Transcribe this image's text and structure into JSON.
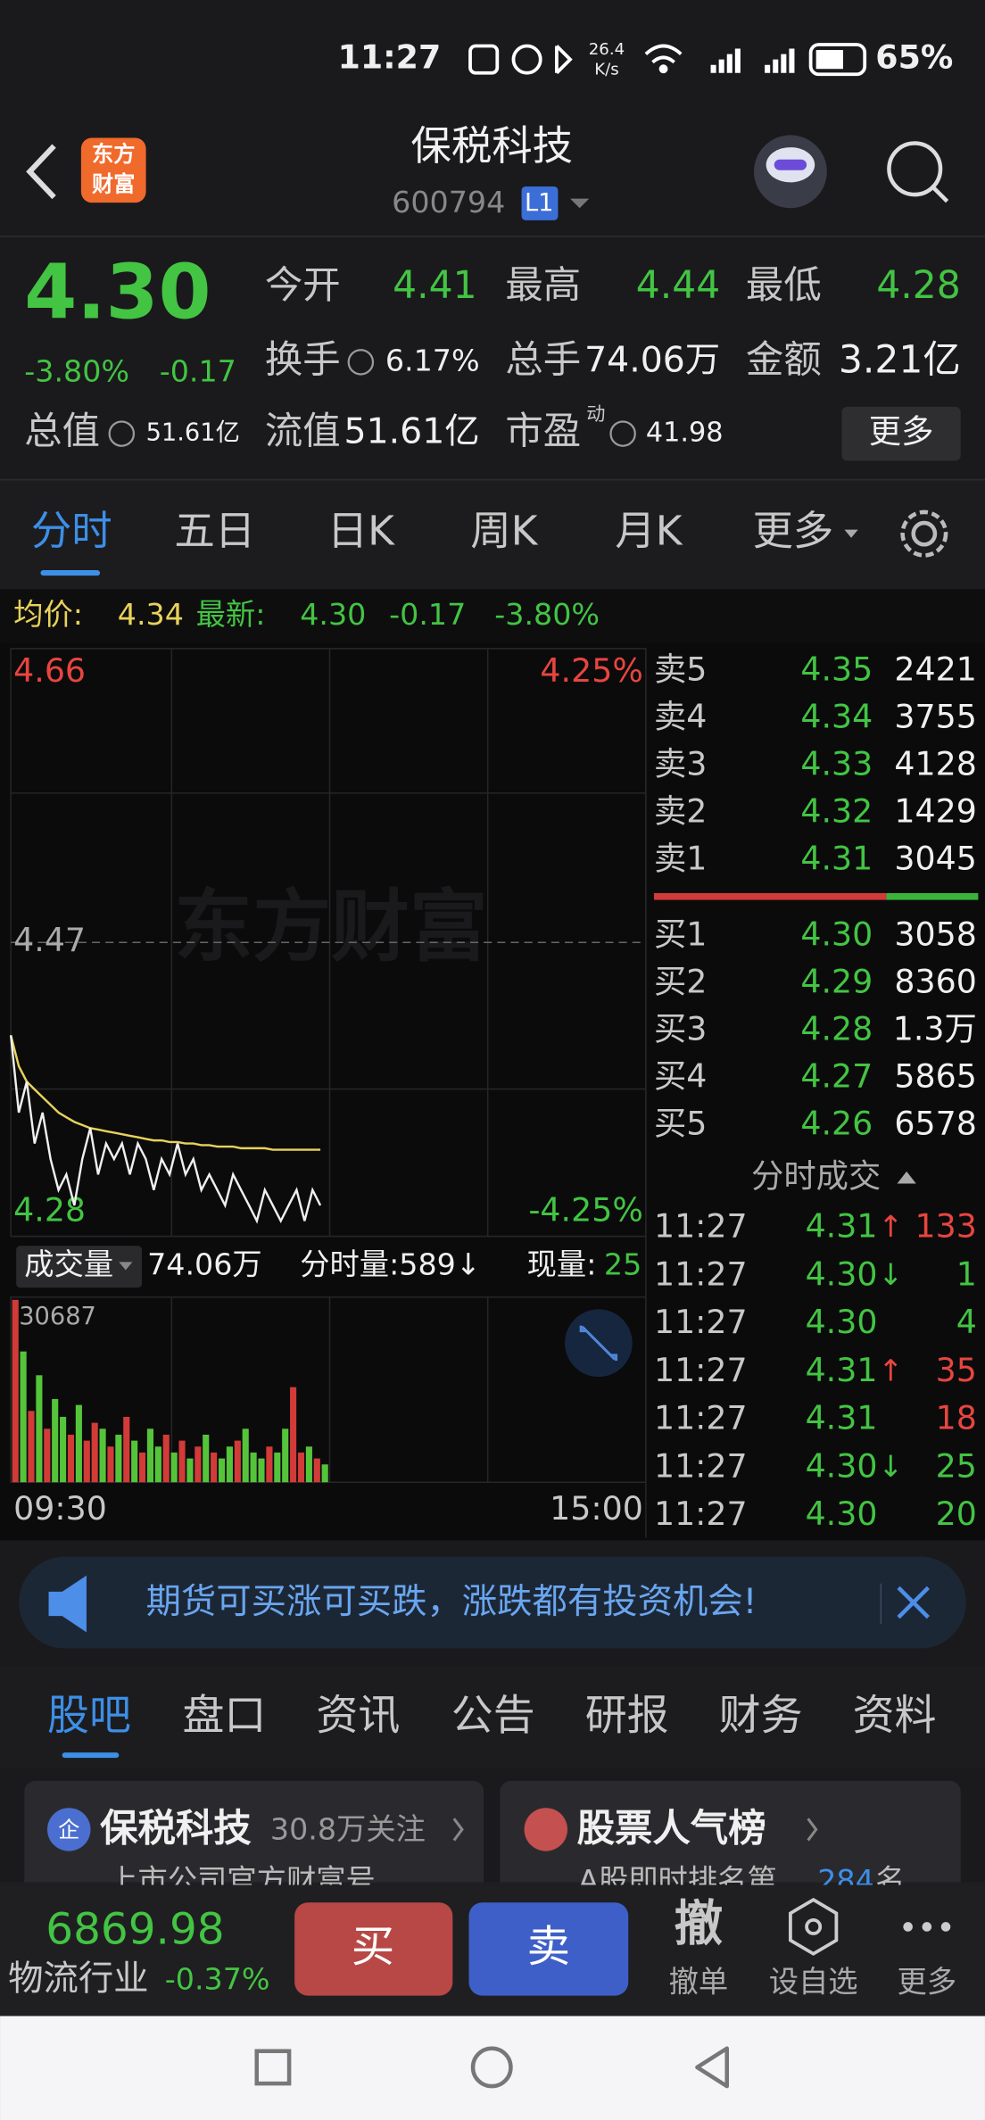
{
  "status": {
    "time": "11:27",
    "speed": "26.4",
    "speed_unit": "K/s",
    "battery": "65%"
  },
  "header": {
    "logo": [
      "东方",
      "财富"
    ],
    "title": "保税科技",
    "code": "600794",
    "level": "L1"
  },
  "quote": {
    "price": "4.30",
    "change_pct": "-3.80%",
    "change": "-0.17",
    "more": "更多",
    "fields": [
      {
        "label": "今开",
        "value": "4.41"
      },
      {
        "label": "最高",
        "value": "4.44"
      },
      {
        "label": "最低",
        "value": "4.28"
      },
      {
        "label": "换手",
        "value": "6.17%"
      },
      {
        "label": "总手",
        "value": "74.06万"
      },
      {
        "label": "金额",
        "value": "3.21亿"
      },
      {
        "label": "总值",
        "value": "51.61亿"
      },
      {
        "label": "流值",
        "value": "51.61亿"
      },
      {
        "label": "市盈",
        "sup": "动",
        "value": "41.98"
      }
    ]
  },
  "tabs": [
    "分时",
    "五日",
    "日K",
    "周K",
    "月K",
    "更多"
  ],
  "info": {
    "avg_label": "均价:",
    "avg": "4.34",
    "latest_label": "最新:",
    "latest": "4.30",
    "change": "-0.17",
    "pct": "-3.80%"
  },
  "intraday": {
    "watermark": "东方财富",
    "yticks": [
      4.66,
      4.47,
      4.28
    ],
    "ylim": [
      4.28,
      4.66
    ],
    "pct_labels": [
      "4.25%",
      "-4.25%"
    ],
    "xlim": [
      0,
      240
    ],
    "time_labels": [
      "09:30",
      "15:00"
    ],
    "x": [
      0,
      3,
      6,
      9,
      12,
      15,
      18,
      21,
      24,
      27,
      30,
      33,
      36,
      39,
      42,
      45,
      48,
      51,
      54,
      57,
      60,
      63,
      66,
      69,
      72,
      75,
      78,
      81,
      84,
      87,
      90,
      93,
      96,
      99,
      102,
      105,
      108,
      111,
      114,
      117
    ],
    "price": [
      4.41,
      4.36,
      4.38,
      4.34,
      4.36,
      4.33,
      4.31,
      4.32,
      4.3,
      4.33,
      4.35,
      4.32,
      4.34,
      4.33,
      4.34,
      4.32,
      4.34,
      4.33,
      4.31,
      4.33,
      4.32,
      4.34,
      4.32,
      4.33,
      4.31,
      4.32,
      4.31,
      4.3,
      4.32,
      4.31,
      4.3,
      4.29,
      4.31,
      4.3,
      4.29,
      4.3,
      4.31,
      4.29,
      4.31,
      4.3
    ],
    "avg": [
      4.41,
      4.39,
      4.38,
      4.375,
      4.37,
      4.365,
      4.36,
      4.357,
      4.354,
      4.352,
      4.35,
      4.349,
      4.348,
      4.347,
      4.346,
      4.345,
      4.344,
      4.343,
      4.342,
      4.342,
      4.341,
      4.341,
      4.34,
      4.34,
      4.339,
      4.339,
      4.338,
      4.338,
      4.338,
      4.337,
      4.337,
      4.337,
      4.337,
      4.336,
      4.336,
      4.336,
      4.336,
      4.336,
      4.336,
      4.336
    ],
    "volume_label": "成交量",
    "total_volume": "74.06万",
    "minute_volume": "分时量:589↓",
    "current_label": "现量:",
    "current": "25",
    "vmax": 30687,
    "volume": [
      30687,
      22000,
      12000,
      18000,
      9000,
      14000,
      11000,
      8000,
      13000,
      7000,
      10000,
      9000,
      6000,
      8000,
      11000,
      7000,
      5000,
      9000,
      6000,
      8000,
      5000,
      7000,
      4000,
      6000,
      8000,
      5000,
      4000,
      6000,
      7000,
      9000,
      5000,
      4000,
      6000,
      5000,
      9000,
      16000,
      5000,
      6000,
      4000,
      3000
    ]
  },
  "book": {
    "sell": [
      {
        "label": "卖5",
        "price": "4.35",
        "vol": "2421"
      },
      {
        "label": "卖4",
        "price": "4.34",
        "vol": "3755"
      },
      {
        "label": "卖3",
        "price": "4.33",
        "vol": "4128"
      },
      {
        "label": "卖2",
        "price": "4.32",
        "vol": "1429"
      },
      {
        "label": "卖1",
        "price": "4.31",
        "vol": "3045"
      }
    ],
    "buy": [
      {
        "label": "买1",
        "price": "4.30",
        "vol": "3058"
      },
      {
        "label": "买2",
        "price": "4.29",
        "vol": "8360"
      },
      {
        "label": "买3",
        "price": "4.28",
        "vol": "1.3万"
      },
      {
        "label": "买4",
        "price": "4.27",
        "vol": "5865"
      },
      {
        "label": "买5",
        "price": "4.26",
        "vol": "6578"
      }
    ]
  },
  "trades": {
    "title": "分时成交",
    "rows": [
      {
        "time": "11:27",
        "price": "4.31",
        "dir": "↑",
        "vol": "133",
        "color": "#e8453f"
      },
      {
        "time": "11:27",
        "price": "4.30",
        "dir": "↓",
        "vol": "1",
        "color": "#43c443"
      },
      {
        "time": "11:27",
        "price": "4.30",
        "vol": "4",
        "color": "#43c443"
      },
      {
        "time": "11:27",
        "price": "4.31",
        "dir": "↑",
        "vol": "35",
        "color": "#e8453f"
      },
      {
        "time": "11:27",
        "price": "4.31",
        "vol": "18",
        "color": "#e8453f"
      },
      {
        "time": "11:27",
        "price": "4.30",
        "dir": "↓",
        "vol": "25",
        "color": "#43c443"
      },
      {
        "time": "11:27",
        "price": "4.30",
        "vol": "20",
        "color": "#43c443"
      }
    ]
  },
  "banner": "期货可买涨可买跌，涨跌都有投资机会!",
  "bottom_tabs": [
    "股吧",
    "盘口",
    "资讯",
    "公告",
    "研报",
    "财务",
    "资料"
  ],
  "cards": [
    {
      "badge": "企",
      "title": "保税科技",
      "sub": "30.8万关注",
      "desc": "上市公司官方财富号"
    },
    {
      "title": "股票人气榜",
      "desc": "A股即时排名第",
      "rank": "284",
      "desc_end": "名"
    }
  ],
  "footer": {
    "index": "6869.98",
    "sector": "物流行业",
    "sector_change": "-0.37%",
    "buy": "买",
    "sell": "卖",
    "cancel_icon": "撤",
    "cancel": "撤单",
    "watch": "设自选",
    "more": "更多"
  }
}
